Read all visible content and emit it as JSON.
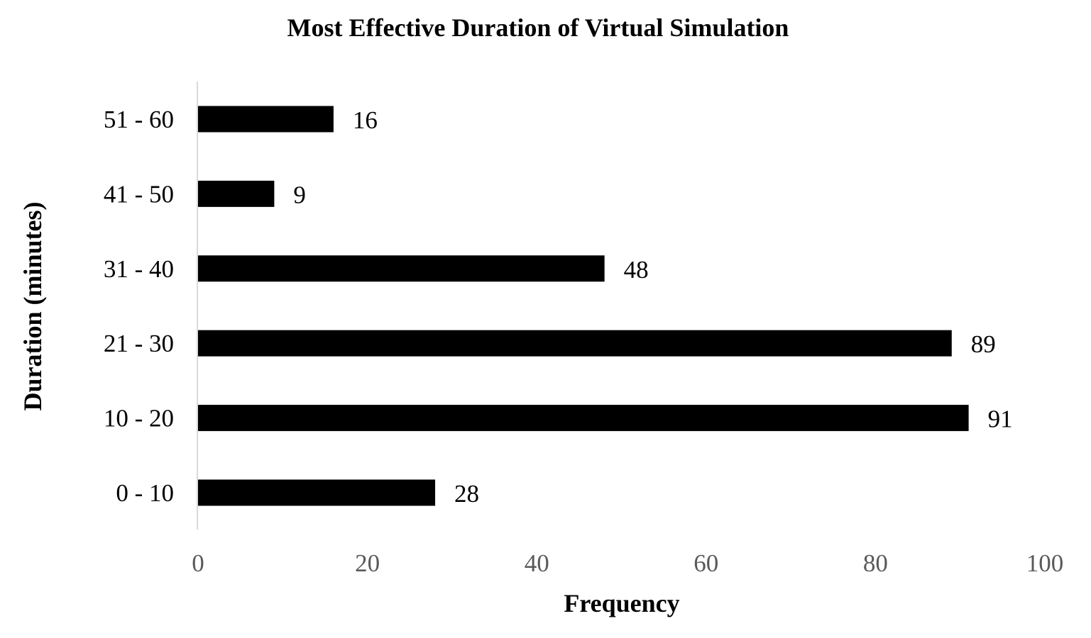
{
  "chart_data": {
    "type": "bar",
    "orientation": "horizontal",
    "title": "Most Effective Duration of Virtual Simulation",
    "xlabel": "Frequency",
    "ylabel": "Duration (minutes)",
    "categories": [
      "0 - 10",
      "10 - 20",
      "21 - 30",
      "31 - 40",
      "41 - 50",
      "51 - 60"
    ],
    "values": [
      28,
      91,
      89,
      48,
      9,
      16
    ],
    "data_labels": [
      "28",
      "91",
      "89",
      "48",
      "9",
      "16"
    ],
    "xlim": [
      0,
      100
    ],
    "x_ticks": [
      0,
      20,
      40,
      60,
      80,
      100
    ],
    "x_tick_labels": [
      "0",
      "20",
      "40",
      "60",
      "80",
      "100"
    ],
    "grid": false,
    "legend": "none",
    "bar_color": "#000000",
    "axis_line_color": "#d9d9d9",
    "tick_label_color": "#595959"
  }
}
